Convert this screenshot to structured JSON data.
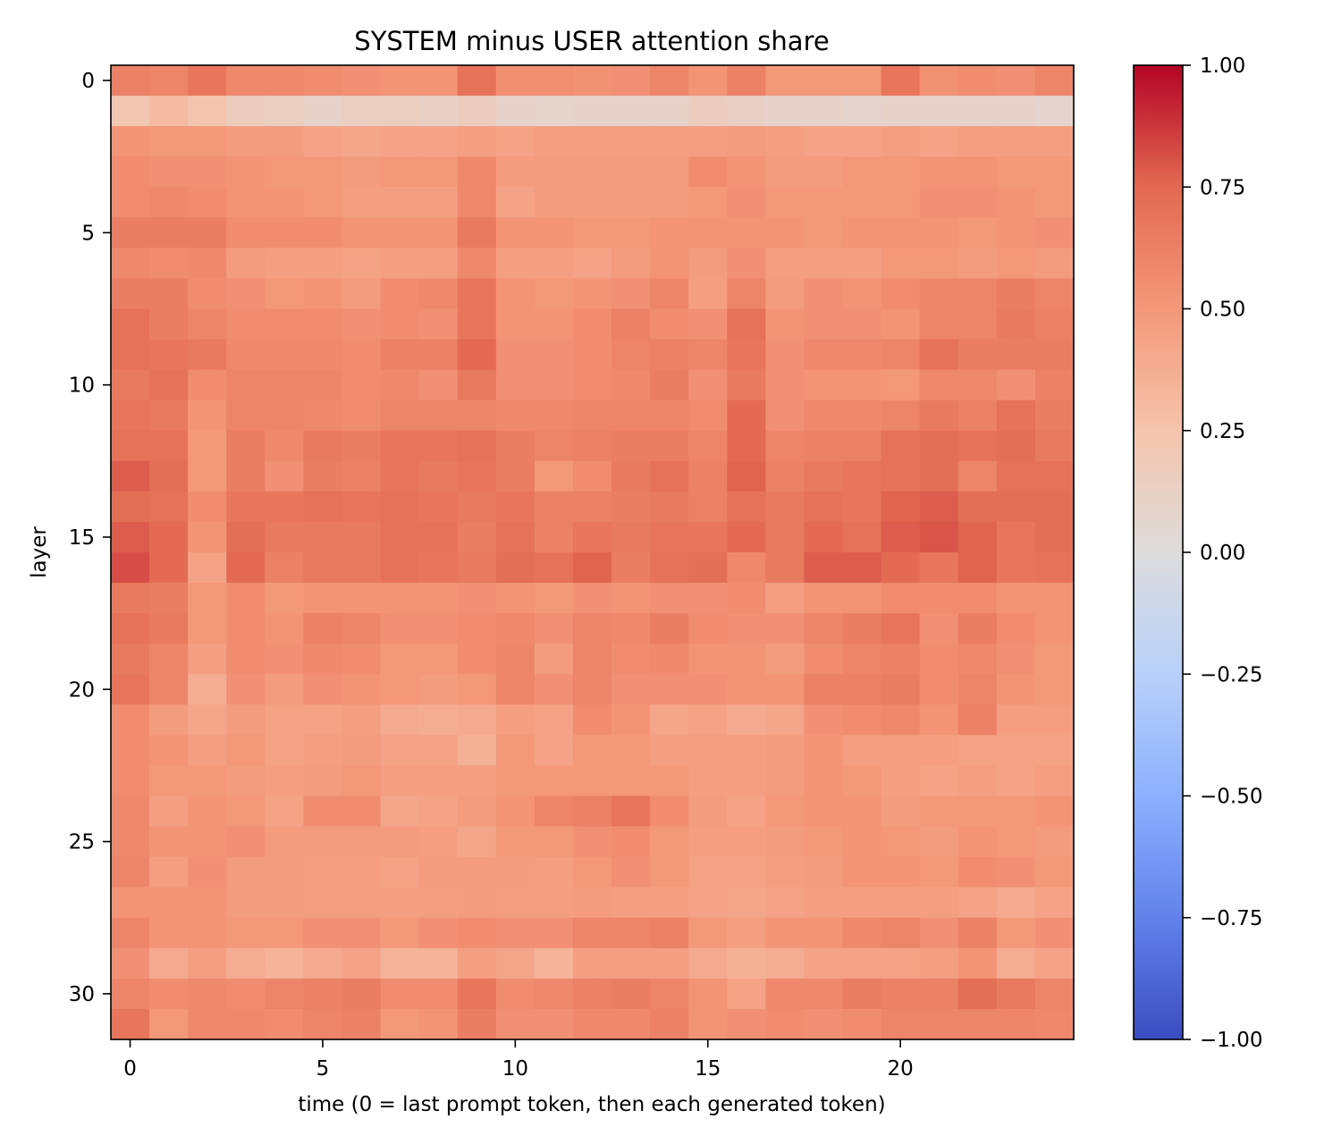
{
  "chart_data": {
    "type": "heatmap",
    "title": "SYSTEM minus USER attention share",
    "xlabel": "time (0 = last prompt token, then each generated token)",
    "ylabel": "layer",
    "x_ticks": [
      0,
      5,
      10,
      15,
      20
    ],
    "y_ticks": [
      0,
      5,
      10,
      15,
      20,
      25,
      30
    ],
    "colorbar": {
      "colormap": "coolwarm",
      "vmin": -1.0,
      "vmax": 1.0,
      "ticks": [
        "1.00",
        "0.75",
        "0.50",
        "0.25",
        "0.00",
        "−0.25",
        "−0.50",
        "−0.75",
        "−1.00"
      ]
    },
    "n_layers": 32,
    "n_times": 25,
    "layer_means": [
      0.62,
      0.12,
      0.47,
      0.52,
      0.51,
      0.58,
      0.48,
      0.56,
      0.58,
      0.63,
      0.57,
      0.61,
      0.64,
      0.67,
      0.69,
      0.71,
      0.73,
      0.53,
      0.58,
      0.57,
      0.56,
      0.44,
      0.46,
      0.45,
      0.5,
      0.47,
      0.47,
      0.46,
      0.53,
      0.42,
      0.6,
      0.56
    ],
    "values": [
      [
        0.62,
        0.6,
        0.68,
        0.58,
        0.58,
        0.56,
        0.54,
        0.52,
        0.52,
        0.7,
        0.55,
        0.55,
        0.53,
        0.54,
        0.6,
        0.52,
        0.62,
        0.5,
        0.5,
        0.5,
        0.68,
        0.53,
        0.56,
        0.54,
        0.6
      ],
      [
        0.22,
        0.3,
        0.24,
        0.16,
        0.14,
        0.1,
        0.14,
        0.14,
        0.12,
        0.16,
        0.1,
        0.09,
        0.1,
        0.1,
        0.1,
        0.16,
        0.12,
        0.1,
        0.1,
        0.08,
        0.1,
        0.1,
        0.1,
        0.1,
        0.08
      ],
      [
        0.52,
        0.5,
        0.5,
        0.48,
        0.48,
        0.44,
        0.42,
        0.44,
        0.44,
        0.46,
        0.44,
        0.46,
        0.46,
        0.46,
        0.46,
        0.46,
        0.48,
        0.46,
        0.44,
        0.44,
        0.46,
        0.44,
        0.46,
        0.46,
        0.46
      ],
      [
        0.56,
        0.54,
        0.54,
        0.52,
        0.5,
        0.5,
        0.48,
        0.5,
        0.5,
        0.58,
        0.48,
        0.48,
        0.48,
        0.48,
        0.48,
        0.56,
        0.52,
        0.48,
        0.48,
        0.5,
        0.5,
        0.52,
        0.52,
        0.5,
        0.5
      ],
      [
        0.56,
        0.58,
        0.56,
        0.52,
        0.52,
        0.5,
        0.46,
        0.46,
        0.46,
        0.58,
        0.44,
        0.48,
        0.48,
        0.48,
        0.48,
        0.5,
        0.54,
        0.5,
        0.5,
        0.5,
        0.5,
        0.54,
        0.54,
        0.52,
        0.5
      ],
      [
        0.64,
        0.64,
        0.64,
        0.56,
        0.56,
        0.56,
        0.52,
        0.52,
        0.52,
        0.66,
        0.52,
        0.52,
        0.5,
        0.5,
        0.52,
        0.52,
        0.52,
        0.52,
        0.5,
        0.52,
        0.52,
        0.52,
        0.5,
        0.52,
        0.54
      ],
      [
        0.58,
        0.56,
        0.58,
        0.48,
        0.46,
        0.46,
        0.44,
        0.46,
        0.46,
        0.58,
        0.46,
        0.46,
        0.44,
        0.48,
        0.52,
        0.48,
        0.54,
        0.46,
        0.46,
        0.46,
        0.5,
        0.5,
        0.48,
        0.5,
        0.48
      ],
      [
        0.64,
        0.64,
        0.56,
        0.54,
        0.5,
        0.52,
        0.48,
        0.56,
        0.58,
        0.68,
        0.52,
        0.5,
        0.52,
        0.54,
        0.6,
        0.46,
        0.6,
        0.48,
        0.54,
        0.52,
        0.56,
        0.6,
        0.6,
        0.64,
        0.6
      ],
      [
        0.7,
        0.64,
        0.6,
        0.56,
        0.56,
        0.56,
        0.54,
        0.56,
        0.54,
        0.68,
        0.52,
        0.52,
        0.56,
        0.62,
        0.56,
        0.54,
        0.7,
        0.52,
        0.54,
        0.54,
        0.52,
        0.6,
        0.6,
        0.66,
        0.62
      ],
      [
        0.7,
        0.68,
        0.66,
        0.58,
        0.58,
        0.58,
        0.56,
        0.62,
        0.62,
        0.74,
        0.54,
        0.54,
        0.56,
        0.6,
        0.62,
        0.6,
        0.68,
        0.54,
        0.58,
        0.58,
        0.6,
        0.7,
        0.64,
        0.64,
        0.64
      ],
      [
        0.66,
        0.7,
        0.56,
        0.6,
        0.6,
        0.6,
        0.56,
        0.58,
        0.54,
        0.66,
        0.54,
        0.54,
        0.56,
        0.58,
        0.64,
        0.54,
        0.66,
        0.54,
        0.52,
        0.52,
        0.5,
        0.58,
        0.58,
        0.54,
        0.62
      ],
      [
        0.68,
        0.66,
        0.52,
        0.6,
        0.6,
        0.58,
        0.56,
        0.6,
        0.6,
        0.6,
        0.58,
        0.58,
        0.6,
        0.6,
        0.6,
        0.56,
        0.74,
        0.54,
        0.58,
        0.58,
        0.6,
        0.66,
        0.62,
        0.7,
        0.64
      ],
      [
        0.7,
        0.7,
        0.5,
        0.64,
        0.58,
        0.66,
        0.64,
        0.68,
        0.68,
        0.7,
        0.64,
        0.6,
        0.62,
        0.64,
        0.64,
        0.6,
        0.74,
        0.6,
        0.62,
        0.62,
        0.7,
        0.72,
        0.7,
        0.72,
        0.66
      ],
      [
        0.78,
        0.72,
        0.5,
        0.64,
        0.54,
        0.64,
        0.62,
        0.68,
        0.66,
        0.68,
        0.64,
        0.5,
        0.56,
        0.66,
        0.7,
        0.62,
        0.76,
        0.62,
        0.66,
        0.68,
        0.7,
        0.72,
        0.6,
        0.7,
        0.7
      ],
      [
        0.72,
        0.7,
        0.56,
        0.68,
        0.68,
        0.7,
        0.68,
        0.7,
        0.68,
        0.66,
        0.68,
        0.62,
        0.62,
        0.64,
        0.66,
        0.62,
        0.7,
        0.66,
        0.7,
        0.68,
        0.76,
        0.78,
        0.72,
        0.72,
        0.72
      ],
      [
        0.78,
        0.74,
        0.52,
        0.72,
        0.66,
        0.66,
        0.66,
        0.7,
        0.7,
        0.64,
        0.7,
        0.62,
        0.68,
        0.66,
        0.68,
        0.68,
        0.74,
        0.66,
        0.74,
        0.7,
        0.78,
        0.8,
        0.76,
        0.68,
        0.72
      ],
      [
        0.82,
        0.74,
        0.44,
        0.74,
        0.62,
        0.66,
        0.66,
        0.7,
        0.68,
        0.66,
        0.72,
        0.7,
        0.76,
        0.64,
        0.7,
        0.72,
        0.58,
        0.66,
        0.78,
        0.78,
        0.74,
        0.68,
        0.76,
        0.68,
        0.7
      ],
      [
        0.66,
        0.64,
        0.5,
        0.56,
        0.5,
        0.52,
        0.52,
        0.52,
        0.52,
        0.54,
        0.52,
        0.5,
        0.54,
        0.52,
        0.54,
        0.54,
        0.56,
        0.46,
        0.52,
        0.52,
        0.56,
        0.56,
        0.56,
        0.52,
        0.52
      ],
      [
        0.7,
        0.66,
        0.5,
        0.56,
        0.52,
        0.62,
        0.6,
        0.54,
        0.54,
        0.56,
        0.58,
        0.54,
        0.6,
        0.58,
        0.64,
        0.56,
        0.54,
        0.54,
        0.6,
        0.64,
        0.68,
        0.54,
        0.64,
        0.56,
        0.52
      ],
      [
        0.66,
        0.6,
        0.46,
        0.56,
        0.54,
        0.58,
        0.56,
        0.5,
        0.5,
        0.56,
        0.6,
        0.48,
        0.6,
        0.56,
        0.58,
        0.52,
        0.52,
        0.48,
        0.56,
        0.6,
        0.62,
        0.56,
        0.58,
        0.54,
        0.5
      ],
      [
        0.68,
        0.6,
        0.38,
        0.54,
        0.48,
        0.54,
        0.52,
        0.5,
        0.48,
        0.5,
        0.6,
        0.54,
        0.6,
        0.54,
        0.54,
        0.54,
        0.52,
        0.52,
        0.62,
        0.62,
        0.64,
        0.56,
        0.6,
        0.52,
        0.5
      ],
      [
        0.56,
        0.48,
        0.42,
        0.48,
        0.44,
        0.44,
        0.46,
        0.4,
        0.38,
        0.4,
        0.46,
        0.44,
        0.56,
        0.52,
        0.42,
        0.44,
        0.4,
        0.42,
        0.54,
        0.56,
        0.58,
        0.52,
        0.62,
        0.46,
        0.46
      ],
      [
        0.56,
        0.52,
        0.46,
        0.5,
        0.44,
        0.46,
        0.48,
        0.44,
        0.44,
        0.36,
        0.5,
        0.44,
        0.5,
        0.5,
        0.46,
        0.46,
        0.46,
        0.48,
        0.52,
        0.46,
        0.46,
        0.46,
        0.44,
        0.44,
        0.44
      ],
      [
        0.56,
        0.5,
        0.5,
        0.48,
        0.46,
        0.48,
        0.5,
        0.46,
        0.46,
        0.46,
        0.5,
        0.5,
        0.5,
        0.5,
        0.5,
        0.46,
        0.46,
        0.48,
        0.52,
        0.5,
        0.46,
        0.44,
        0.46,
        0.44,
        0.46
      ],
      [
        0.58,
        0.46,
        0.52,
        0.5,
        0.44,
        0.56,
        0.56,
        0.42,
        0.44,
        0.48,
        0.52,
        0.6,
        0.62,
        0.68,
        0.56,
        0.48,
        0.44,
        0.5,
        0.52,
        0.52,
        0.48,
        0.5,
        0.5,
        0.5,
        0.52
      ],
      [
        0.58,
        0.52,
        0.52,
        0.54,
        0.48,
        0.48,
        0.48,
        0.48,
        0.46,
        0.42,
        0.5,
        0.5,
        0.54,
        0.56,
        0.5,
        0.46,
        0.46,
        0.48,
        0.5,
        0.52,
        0.5,
        0.48,
        0.52,
        0.5,
        0.48
      ],
      [
        0.6,
        0.46,
        0.54,
        0.48,
        0.48,
        0.46,
        0.46,
        0.44,
        0.48,
        0.48,
        0.48,
        0.46,
        0.5,
        0.54,
        0.5,
        0.44,
        0.44,
        0.46,
        0.48,
        0.52,
        0.52,
        0.5,
        0.56,
        0.54,
        0.5
      ],
      [
        0.52,
        0.52,
        0.52,
        0.48,
        0.48,
        0.46,
        0.46,
        0.46,
        0.46,
        0.48,
        0.46,
        0.46,
        0.48,
        0.46,
        0.46,
        0.44,
        0.42,
        0.44,
        0.46,
        0.46,
        0.46,
        0.46,
        0.44,
        0.4,
        0.44
      ],
      [
        0.6,
        0.52,
        0.52,
        0.5,
        0.5,
        0.54,
        0.54,
        0.5,
        0.54,
        0.56,
        0.54,
        0.54,
        0.6,
        0.6,
        0.62,
        0.5,
        0.46,
        0.52,
        0.52,
        0.58,
        0.6,
        0.54,
        0.62,
        0.5,
        0.54
      ],
      [
        0.54,
        0.4,
        0.46,
        0.38,
        0.34,
        0.4,
        0.44,
        0.34,
        0.34,
        0.46,
        0.42,
        0.34,
        0.46,
        0.46,
        0.46,
        0.4,
        0.36,
        0.38,
        0.44,
        0.44,
        0.44,
        0.46,
        0.52,
        0.38,
        0.44
      ],
      [
        0.6,
        0.56,
        0.58,
        0.56,
        0.6,
        0.62,
        0.64,
        0.56,
        0.56,
        0.68,
        0.56,
        0.58,
        0.62,
        0.64,
        0.6,
        0.52,
        0.44,
        0.58,
        0.58,
        0.64,
        0.62,
        0.62,
        0.72,
        0.66,
        0.6
      ],
      [
        0.68,
        0.5,
        0.58,
        0.58,
        0.56,
        0.6,
        0.62,
        0.5,
        0.52,
        0.64,
        0.54,
        0.54,
        0.58,
        0.58,
        0.62,
        0.52,
        0.54,
        0.56,
        0.54,
        0.56,
        0.6,
        0.6,
        0.6,
        0.6,
        0.58
      ]
    ]
  }
}
